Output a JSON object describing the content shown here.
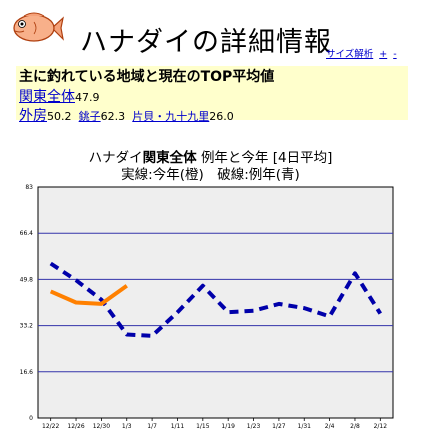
{
  "header": {
    "title": "ハナダイの詳細情報",
    "links": [
      "サイズ解析",
      "+",
      "-"
    ]
  },
  "info": {
    "heading": "主に釣れている地域と現在のTOP平均値",
    "region": {
      "label": "関東全体",
      "value": "47.9"
    },
    "spots": [
      {
        "label": "外房",
        "value": "50.2"
      },
      {
        "label": "銚子",
        "value": "62.3"
      },
      {
        "label": "片貝・九十九里",
        "value": "26.0"
      }
    ]
  },
  "chart": {
    "title_prefix": "ハナダイ",
    "title_region": "関東全体",
    "title_suffix": "例年と今年 [4日平均]",
    "subtitle": "実線:今年(橙)　破線:例年(青)"
  },
  "chart_data": {
    "type": "line",
    "ylim": [
      0,
      83
    ],
    "yticks": [
      "0",
      "16.6",
      "33.2",
      "49.8",
      "66.4",
      "83"
    ],
    "categories": [
      "12/22",
      "12/26",
      "12/30",
      "1/3",
      "1/7",
      "1/11",
      "1/15",
      "1/19",
      "1/23",
      "1/27",
      "1/31",
      "2/4",
      "2/8",
      "2/12"
    ],
    "grid": true,
    "series": [
      {
        "style": "solid",
        "color": "#ff8000",
        "x": [
          "12/22",
          "12/26",
          "12/30",
          "1/3"
        ],
        "values": [
          45.5,
          41.5,
          41.0,
          47.5
        ]
      },
      {
        "style": "dashed",
        "color": "#0000aa",
        "x": [
          "12/22",
          "12/26",
          "12/30",
          "1/3",
          "1/7",
          "1/11",
          "1/15",
          "1/19",
          "1/23",
          "1/27",
          "1/31",
          "2/4",
          "2/8",
          "2/12"
        ],
        "values": [
          55.5,
          49.5,
          42.5,
          30.0,
          29.5,
          38.0,
          47.5,
          38.0,
          38.5,
          41.0,
          39.5,
          36.5,
          52.0,
          37.5
        ]
      }
    ]
  }
}
